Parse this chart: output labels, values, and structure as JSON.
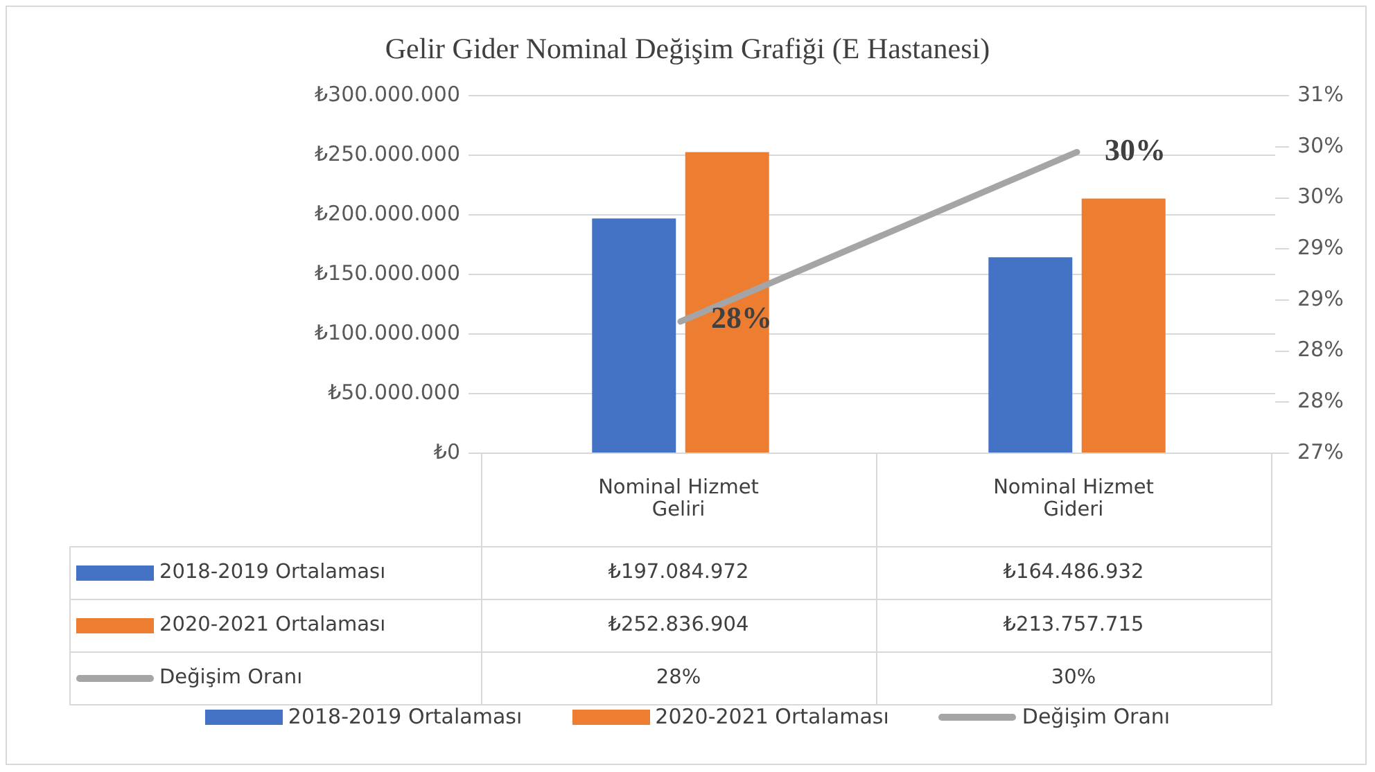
{
  "chart_data": {
    "type": "bar",
    "title": "Gelir Gider Nominal Değişim Grafiği (E Hastanesi)",
    "categories": [
      "Nominal Hizmet Geliri",
      "Nominal Hizmet Gideri"
    ],
    "series": [
      {
        "name": "2018-2019 Ortalaması",
        "color": "#4472c4",
        "values": [
          197084972,
          164486932
        ],
        "value_labels": [
          "₺197.084.972",
          "₺164.486.932"
        ]
      },
      {
        "name": "2020-2021 Ortalaması",
        "color": "#ed7d31",
        "values": [
          252836904,
          213757715
        ],
        "value_labels": [
          "₺252.836.904",
          "₺213.757.715"
        ]
      },
      {
        "name": "Değişim Oranı",
        "type": "line",
        "axis": "y2",
        "color": "#a5a5a5",
        "marker": "none",
        "values": [
          28.29,
          29.95
        ],
        "value_labels": [
          "28%",
          "30%"
        ]
      }
    ],
    "ylim": [
      0,
      300000000
    ],
    "yticks": [
      {
        "value": 0,
        "label": "₺0"
      },
      {
        "value": 50000000,
        "label": "₺50.000.000"
      },
      {
        "value": 100000000,
        "label": "₺100.000.000"
      },
      {
        "value": 150000000,
        "label": "₺150.000.000"
      },
      {
        "value": 200000000,
        "label": "₺200.000.000"
      },
      {
        "value": 250000000,
        "label": "₺250.000.000"
      },
      {
        "value": 300000000,
        "label": "₺300.000.000"
      }
    ],
    "y2lim": [
      27,
      30.5
    ],
    "y2ticks": [
      {
        "value": 27,
        "label": "27%"
      },
      {
        "value": 27.5,
        "label": "28%"
      },
      {
        "value": 28,
        "label": "28%"
      },
      {
        "value": 28.5,
        "label": "29%"
      },
      {
        "value": 29,
        "label": "29%"
      },
      {
        "value": 29.5,
        "label": "30%"
      },
      {
        "value": 30,
        "label": "30%"
      },
      {
        "value": 30.5,
        "label": "31%"
      }
    ],
    "grid": "y",
    "legend": "bottom"
  }
}
